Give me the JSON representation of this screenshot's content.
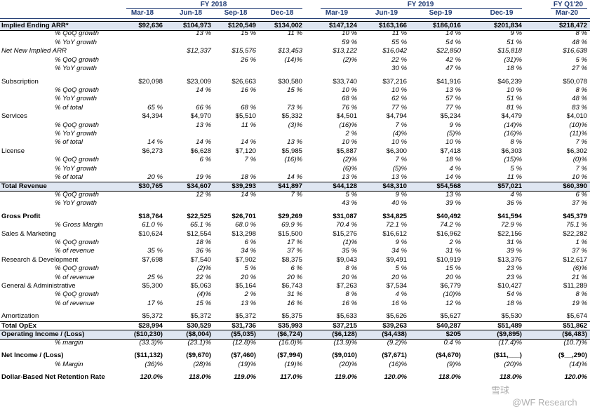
{
  "fiscal_years": [
    {
      "label": "FY 2018",
      "start": 0,
      "span": 4
    },
    {
      "label": "FY 2019",
      "start": 4,
      "span": 4
    },
    {
      "label": "FY Q1'20",
      "start": 8,
      "span": 1
    }
  ],
  "columns": [
    "Mar-18",
    "Jun-18",
    "Sep-18",
    "Dec-18",
    "Mar-19",
    "Jun-19",
    "Sep-19",
    "Dec-19",
    "Mar-20"
  ],
  "rows": [
    {
      "label": "Implied Ending ARR*",
      "style": "bold-shaded",
      "values": [
        "$92,636",
        "$104,973",
        "$120,549",
        "$134,002",
        "$147,124",
        "$163,166",
        "$186,016",
        "$201,834",
        "$218,472"
      ]
    },
    {
      "label": "% QoQ growth",
      "style": "sub",
      "values": [
        "",
        "13 %",
        "15 %",
        "11 %",
        "10 %",
        "11 %",
        "14 %",
        "9 %",
        "8 %"
      ]
    },
    {
      "label": "% YoY growth",
      "style": "sub",
      "values": [
        "",
        "",
        "",
        "",
        "59 %",
        "55 %",
        "54 %",
        "51 %",
        "48 %"
      ]
    },
    {
      "label": "Net New Implied ARR",
      "style": "italic",
      "values": [
        "",
        "$12,337",
        "$15,576",
        "$13,453",
        "$13,122",
        "$16,042",
        "$22,850",
        "$15,818",
        "$16,638"
      ]
    },
    {
      "label": "% QoQ growth",
      "style": "sub",
      "values": [
        "",
        "",
        "26 %",
        "(14)%",
        "(2)%",
        "22 %",
        "42 %",
        "(31)%",
        "5 %"
      ]
    },
    {
      "label": "% YoY growth",
      "style": "sub",
      "values": [
        "",
        "",
        "",
        "",
        "",
        "30 %",
        "47 %",
        "18 %",
        "27 %"
      ]
    },
    {
      "label": "",
      "style": "blank",
      "values": []
    },
    {
      "label": "Subscription",
      "style": "normal",
      "values": [
        "$20,098",
        "$23,009",
        "$26,663",
        "$30,580",
        "$33,740",
        "$37,216",
        "$41,916",
        "$46,239",
        "$50,078"
      ]
    },
    {
      "label": "% QoQ growth",
      "style": "sub",
      "values": [
        "",
        "14 %",
        "16 %",
        "15 %",
        "10 %",
        "10 %",
        "13 %",
        "10 %",
        "8 %"
      ]
    },
    {
      "label": "% YoY growth",
      "style": "sub",
      "values": [
        "",
        "",
        "",
        "",
        "68 %",
        "62 %",
        "57 %",
        "51 %",
        "48 %"
      ]
    },
    {
      "label": "% of total",
      "style": "sub",
      "values": [
        "65 %",
        "66 %",
        "68 %",
        "73 %",
        "76 %",
        "77 %",
        "77 %",
        "81 %",
        "83 %"
      ]
    },
    {
      "label": "Services",
      "style": "normal",
      "values": [
        "$4,394",
        "$4,970",
        "$5,510",
        "$5,332",
        "$4,501",
        "$4,794",
        "$5,234",
        "$4,479",
        "$4,010"
      ]
    },
    {
      "label": "% QoQ growth",
      "style": "sub",
      "values": [
        "",
        "13 %",
        "11 %",
        "(3)%",
        "(16)%",
        "7 %",
        "9 %",
        "(14)%",
        "(10)%"
      ]
    },
    {
      "label": "% YoY growth",
      "style": "sub",
      "values": [
        "",
        "",
        "",
        "",
        "2 %",
        "(4)%",
        "(5)%",
        "(16)%",
        "(11)%"
      ]
    },
    {
      "label": "% of total",
      "style": "sub",
      "values": [
        "14 %",
        "14 %",
        "14 %",
        "13 %",
        "10 %",
        "10 %",
        "10 %",
        "8 %",
        "7 %"
      ]
    },
    {
      "label": "License",
      "style": "normal",
      "values": [
        "$6,273",
        "$6,628",
        "$7,120",
        "$5,985",
        "$5,887",
        "$6,300",
        "$7,418",
        "$6,303",
        "$6,302"
      ]
    },
    {
      "label": "% QoQ growth",
      "style": "sub",
      "values": [
        "",
        "6 %",
        "7 %",
        "(16)%",
        "(2)%",
        "7 %",
        "18 %",
        "(15)%",
        "(0)%"
      ]
    },
    {
      "label": "% YoY growth",
      "style": "sub",
      "values": [
        "",
        "",
        "",
        "",
        "(6)%",
        "(5)%",
        "4 %",
        "5 %",
        "7 %"
      ]
    },
    {
      "label": "% of total",
      "style": "sub",
      "values": [
        "20 %",
        "19 %",
        "18 %",
        "14 %",
        "13 %",
        "13 %",
        "14 %",
        "11 %",
        "10 %"
      ]
    },
    {
      "label": "Total Revenue",
      "style": "bold-shaded",
      "values": [
        "$30,765",
        "$34,607",
        "$39,293",
        "$41,897",
        "$44,128",
        "$48,310",
        "$54,568",
        "$57,021",
        "$60,390"
      ]
    },
    {
      "label": "% QoQ growth",
      "style": "sub",
      "values": [
        "",
        "12 %",
        "14 %",
        "7 %",
        "5 %",
        "9 %",
        "13 %",
        "4 %",
        "6 %"
      ]
    },
    {
      "label": "% YoY growth",
      "style": "sub",
      "values": [
        "",
        "",
        "",
        "",
        "43 %",
        "40 %",
        "39 %",
        "36 %",
        "37 %"
      ]
    },
    {
      "label": "",
      "style": "blank",
      "values": []
    },
    {
      "label": "Gross Profit",
      "style": "bold",
      "values": [
        "$18,764",
        "$22,525",
        "$26,701",
        "$29,269",
        "$31,087",
        "$34,825",
        "$40,492",
        "$41,594",
        "$45,379"
      ]
    },
    {
      "label": "% Gross Margin",
      "style": "sub",
      "values": [
        "61.0 %",
        "65.1 %",
        "68.0 %",
        "69.9 %",
        "70.4 %",
        "72.1 %",
        "74.2 %",
        "72.9 %",
        "75.1 %"
      ]
    },
    {
      "label": "Sales & Marketing",
      "style": "normal",
      "values": [
        "$10,624",
        "$12,554",
        "$13,298",
        "$15,500",
        "$15,276",
        "$16,612",
        "$16,962",
        "$22,156",
        "$22,282"
      ]
    },
    {
      "label": "% QoQ growth",
      "style": "sub",
      "values": [
        "",
        "18 %",
        "6 %",
        "17 %",
        "(1)%",
        "9 %",
        "2 %",
        "31 %",
        "1 %"
      ]
    },
    {
      "label": "% of revenue",
      "style": "sub",
      "values": [
        "35 %",
        "36 %",
        "34 %",
        "37 %",
        "35 %",
        "34 %",
        "31 %",
        "39 %",
        "37 %"
      ]
    },
    {
      "label": "Research & Development",
      "style": "normal",
      "values": [
        "$7,698",
        "$7,540",
        "$7,902",
        "$8,375",
        "$9,043",
        "$9,491",
        "$10,919",
        "$13,376",
        "$12,617"
      ]
    },
    {
      "label": "% QoQ growth",
      "style": "sub",
      "values": [
        "",
        "(2)%",
        "5 %",
        "6 %",
        "8 %",
        "5 %",
        "15 %",
        "23 %",
        "(6)%"
      ]
    },
    {
      "label": "% of revenue",
      "style": "sub",
      "values": [
        "25 %",
        "22 %",
        "20 %",
        "20 %",
        "20 %",
        "20 %",
        "20 %",
        "23 %",
        "21 %"
      ]
    },
    {
      "label": "General & Administrative",
      "style": "normal",
      "values": [
        "$5,300",
        "$5,063",
        "$5,164",
        "$6,743",
        "$7,263",
        "$7,534",
        "$6,779",
        "$10,427",
        "$11,289"
      ]
    },
    {
      "label": "% QoQ growth",
      "style": "sub",
      "values": [
        "",
        "(4)%",
        "2 %",
        "31 %",
        "8 %",
        "4 %",
        "(10)%",
        "54 %",
        "8 %"
      ]
    },
    {
      "label": "% of revenue",
      "style": "sub",
      "values": [
        "17 %",
        "15 %",
        "13 %",
        "16 %",
        "16 %",
        "16 %",
        "12 %",
        "18 %",
        "19 %"
      ]
    },
    {
      "label": "",
      "style": "blank",
      "values": []
    },
    {
      "label": "Amortization",
      "style": "normal",
      "values": [
        "$5,372",
        "$5,372",
        "$5,372",
        "$5,375",
        "$5,633",
        "$5,626",
        "$5,627",
        "$5,530",
        "$5,674"
      ]
    },
    {
      "label": "Total OpEx",
      "style": "bold-top",
      "values": [
        "$28,994",
        "$30,529",
        "$31,736",
        "$35,993",
        "$37,215",
        "$39,263",
        "$40,287",
        "$51,489",
        "$51,862"
      ]
    },
    {
      "label": "Operating Income / (Loss)",
      "style": "bold-shaded",
      "values": [
        "($10,230)",
        "($8,004)",
        "($5,035)",
        "($6,724)",
        "($6,128)",
        "($4,438)",
        "$205",
        "($9,895)",
        "($6,483)"
      ]
    },
    {
      "label": "% margin",
      "style": "sub",
      "values": [
        "(33.3)%",
        "(23.1)%",
        "(12.8)%",
        "(16.0)%",
        "(13.9)%",
        "(9.2)%",
        "0.4 %",
        "(17.4)%",
        "(10.7)%"
      ]
    },
    {
      "label": "",
      "style": "blank",
      "values": []
    },
    {
      "label": "Net Income / (Loss)",
      "style": "bold",
      "values": [
        "($11,132)",
        "($9,670)",
        "($7,460)",
        "($7,994)",
        "($9,010)",
        "($7,671)",
        "($4,670)",
        "($11,___)",
        "($__,290)"
      ]
    },
    {
      "label": "% Margin",
      "style": "sub",
      "values": [
        "(36)%",
        "(28)%",
        "(19)%",
        "(19)%",
        "(20)%",
        "(16)%",
        "(9)%",
        "(20)%",
        "(14)%"
      ]
    },
    {
      "label": "",
      "style": "blank",
      "values": []
    },
    {
      "label": "Dollar-Based Net Retention Rate",
      "style": "bold-italic-vals",
      "values": [
        "120.0%",
        "118.0%",
        "119.0%",
        "117.0%",
        "119.0%",
        "120.0%",
        "118.0%",
        "118.0%",
        "120.0%"
      ]
    }
  ],
  "watermark": {
    "line1": "雪球",
    "line2": "@WF Research"
  }
}
